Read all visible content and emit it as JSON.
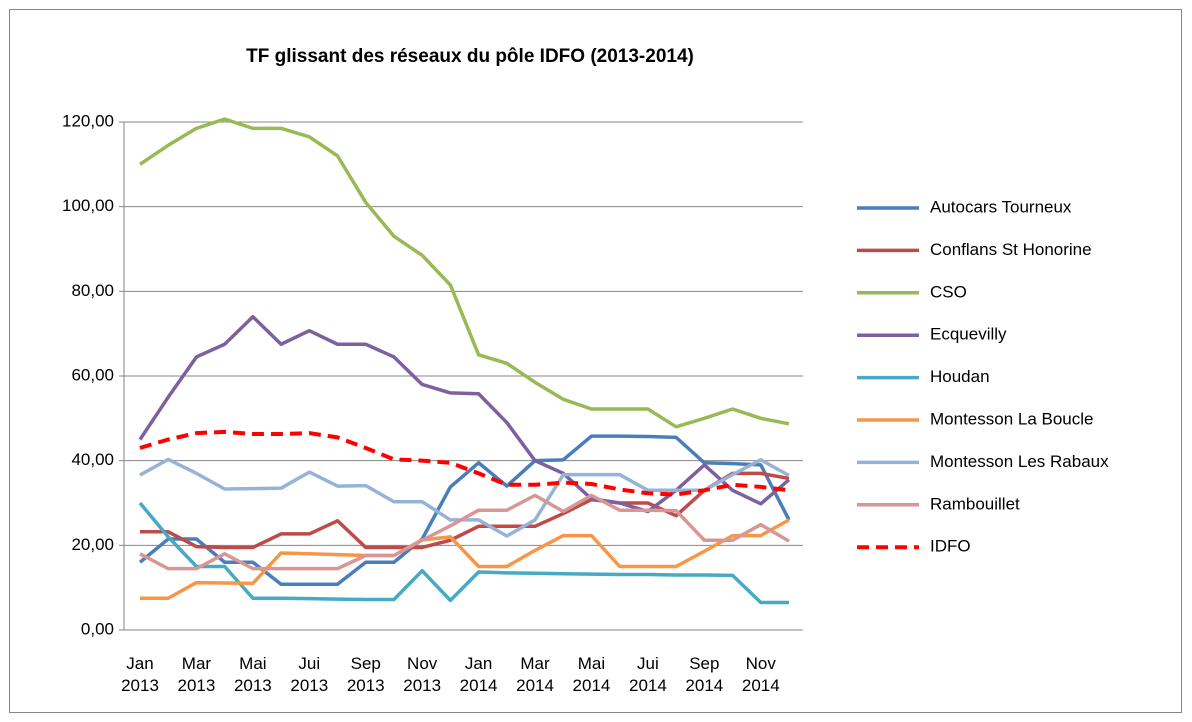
{
  "chart_data": {
    "type": "line",
    "title": "TF glissant des réseaux du pôle IDFO (2013-2014)",
    "categories": [
      "Jan 2013",
      null,
      "Mar 2013",
      null,
      "Mai 2013",
      null,
      "Jui 2013",
      null,
      "Sep 2013",
      null,
      "Nov 2013",
      null,
      "Jan 2014",
      null,
      "Mar 2014",
      null,
      "Mai 2014",
      null,
      "Jui 2014",
      null,
      "Sep 2014",
      null,
      "Nov 2014",
      null
    ],
    "ylim": [
      0,
      120
    ],
    "yticks": [
      {
        "value": 0,
        "label": "0,00"
      },
      {
        "value": 20,
        "label": "20,00"
      },
      {
        "value": 40,
        "label": "40,00"
      },
      {
        "value": 60,
        "label": "60,00"
      },
      {
        "value": 80,
        "label": "80,00"
      },
      {
        "value": 100,
        "label": "100,00"
      },
      {
        "value": 120,
        "label": "120,00"
      }
    ],
    "grid": true,
    "legend": "right",
    "series": [
      {
        "name": "Autocars Tourneux",
        "color": "#4a7ebb",
        "values": [
          16,
          21.5,
          21.5,
          16,
          16,
          10.8,
          10.8,
          10.8,
          16,
          16,
          21.5,
          33.8,
          39.5,
          34,
          40,
          40.2,
          45.8,
          45.8,
          45.7,
          45.5,
          39.5,
          39.3,
          39,
          26
        ]
      },
      {
        "name": "Conflans St Honorine",
        "color": "#be4b48",
        "values": [
          23.2,
          23.2,
          19.7,
          19.5,
          19.5,
          22.7,
          22.7,
          25.8,
          19.5,
          19.5,
          19.5,
          21.2,
          24.5,
          24.5,
          24.5,
          27.5,
          30.8,
          30,
          30,
          27,
          33,
          37,
          37,
          35.8
        ]
      },
      {
        "name": "CSO",
        "color": "#98b954",
        "values": [
          110,
          114.5,
          118.5,
          120.7,
          118.5,
          118.5,
          116.5,
          112,
          101,
          93,
          88.5,
          81.5,
          65,
          63,
          58.5,
          54.5,
          52.2,
          52.2,
          52.2,
          48,
          50,
          52.2,
          50,
          48.7
        ]
      },
      {
        "name": "Ecquevilly",
        "color": "#7d60a0",
        "values": [
          45,
          55,
          64.5,
          67.5,
          74,
          67.5,
          70.7,
          67.5,
          67.5,
          64.5,
          58,
          56,
          55.8,
          49,
          40,
          37,
          31,
          30,
          28,
          33,
          39,
          33,
          29.8,
          35.5
        ]
      },
      {
        "name": "Houdan",
        "color": "#46aac5",
        "values": [
          30,
          22,
          15,
          15,
          7.5,
          7.5,
          7.4,
          7.3,
          7.2,
          7.2,
          14,
          7,
          13.7,
          13.5,
          13.4,
          13.3,
          13.2,
          13.1,
          13.1,
          13,
          13,
          12.9,
          6.5,
          6.5
        ]
      },
      {
        "name": "Montesson La Boucle",
        "color": "#f79646",
        "values": [
          7.5,
          7.5,
          11.2,
          11.1,
          11,
          18.2,
          18,
          17.8,
          17.6,
          17.6,
          21.3,
          22,
          15,
          15,
          18.8,
          22.3,
          22.3,
          15,
          15,
          15,
          18.6,
          22.3,
          22.3,
          26
        ]
      },
      {
        "name": "Montesson Les Rabaux",
        "color": "#95b3d7",
        "values": [
          36.6,
          40.3,
          37,
          33.3,
          33.4,
          33.5,
          37.3,
          34,
          34.1,
          30.3,
          30.3,
          26,
          26,
          22.2,
          26,
          36.7,
          36.7,
          36.7,
          33,
          33,
          33,
          36.7,
          40.2,
          36.5
        ]
      },
      {
        "name": "Rambouillet",
        "color": "#d99694",
        "values": [
          18,
          14.5,
          14.5,
          18,
          14.5,
          14.5,
          14.5,
          14.5,
          17.6,
          17.6,
          21.2,
          24.6,
          28.3,
          28.3,
          31.8,
          28,
          31.8,
          28.3,
          28.3,
          28.2,
          21.2,
          21.2,
          24.9,
          21
        ]
      },
      {
        "name": "IDFO",
        "color": "#ff0000",
        "style": "dashed",
        "values": [
          43,
          45,
          46.5,
          46.8,
          46.3,
          46.3,
          46.5,
          45.5,
          43,
          40.3,
          40,
          39.5,
          37,
          34.3,
          34.3,
          34.8,
          34.5,
          33.2,
          32.3,
          32,
          33,
          34.3,
          33.8,
          33
        ]
      }
    ]
  }
}
